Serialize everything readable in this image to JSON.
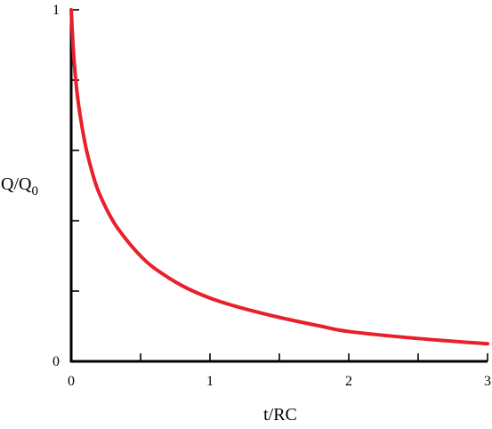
{
  "chart_data": {
    "type": "line",
    "title": "",
    "xlabel": "t/RC",
    "ylabel": {
      "main": "Q/Q",
      "sub": "0"
    },
    "xlim": [
      0,
      3
    ],
    "ylim": [
      0,
      1
    ],
    "x_tick_labels": [
      "0",
      "1",
      "2",
      "3"
    ],
    "x_minor_ticks": [
      0.5,
      1.5,
      2.5
    ],
    "y_tick_labels": [
      "0",
      "1"
    ],
    "y_minor_ticks": [
      0.2,
      0.4,
      0.6,
      0.8
    ],
    "grid": false,
    "legend": "none",
    "series": [
      {
        "color": "#e8202a",
        "x": [
          0,
          0.02,
          0.05,
          0.1,
          0.15,
          0.2,
          0.3,
          0.4,
          0.5,
          0.6,
          0.8,
          1.0,
          1.2,
          1.5,
          1.8,
          2.0,
          2.5,
          3.0
        ],
        "y": [
          1.0,
          0.86,
          0.74,
          0.62,
          0.54,
          0.48,
          0.4,
          0.345,
          0.3,
          0.265,
          0.215,
          0.18,
          0.155,
          0.125,
          0.1,
          0.085,
          0.065,
          0.05
        ]
      }
    ]
  }
}
